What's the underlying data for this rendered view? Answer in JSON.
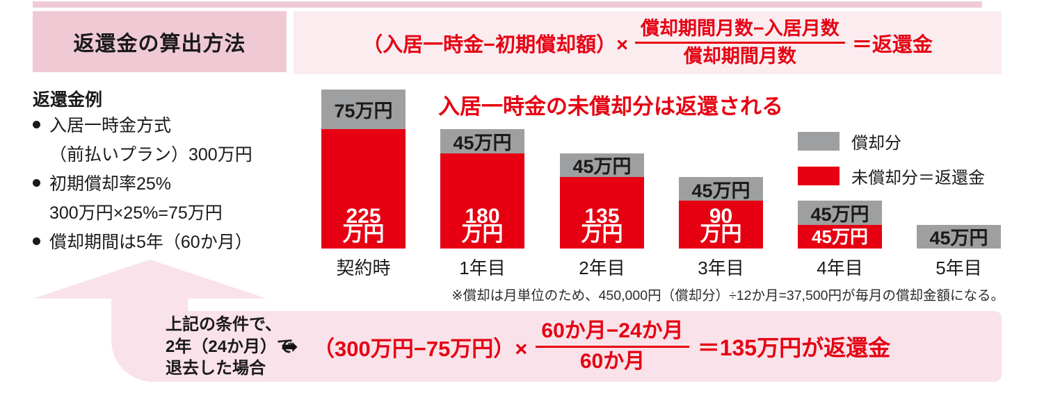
{
  "colors": {
    "red": "#E60012",
    "gray": "#9E9FA0",
    "pink_dark": "#EFCAD5",
    "pink_light": "#FBECF0",
    "pink_band": "#F9E2E9"
  },
  "header": {
    "title": "返還金の算出方法"
  },
  "formula_top": {
    "lhs": "（入居一時金−初期償却額）×",
    "numerator": "償却期間月数−入居月数",
    "denominator": "償却期間月数",
    "rhs": "＝返還金"
  },
  "example": {
    "heading": "返還金例",
    "lines": [
      {
        "bullet": true,
        "text": "入居一時金方式"
      },
      {
        "bullet": false,
        "text": "（前払いプラン）300万円"
      },
      {
        "bullet": true,
        "text": "初期償却率25%"
      },
      {
        "bullet": false,
        "text": "300万円×25%=75万円"
      },
      {
        "bullet": true,
        "text": "償却期間は5年（60か月）"
      }
    ]
  },
  "chart_data": {
    "type": "bar",
    "stacked": true,
    "title": "入居一時金の未償却分は返還される",
    "unit": "万円",
    "categories": [
      "契約時",
      "1年目",
      "2年目",
      "3年目",
      "4年目",
      "5年目"
    ],
    "series": [
      {
        "name": "償却分",
        "color_key": "gray",
        "values": [
          75,
          45,
          45,
          45,
          45,
          45
        ]
      },
      {
        "name": "未償却分＝返還金",
        "color_key": "red",
        "values": [
          225,
          180,
          135,
          90,
          45,
          0
        ]
      }
    ],
    "bar_labels": {
      "amortized": [
        "75万円",
        "45万円",
        "45万円",
        "45万円",
        "45万円",
        "45万円"
      ],
      "refund": [
        [
          "225",
          "万円"
        ],
        [
          "180",
          "万円"
        ],
        [
          "135",
          "万円"
        ],
        [
          "90",
          "万円"
        ],
        [
          "45万円"
        ],
        []
      ]
    },
    "legend": [
      {
        "label": "償却分",
        "color_key": "gray"
      },
      {
        "label": "未償却分＝返還金",
        "color_key": "red"
      }
    ],
    "ylim": [
      0,
      300
    ],
    "grid": false,
    "legend_position": "right",
    "note": "※償却は月単位のため、450,000円（償却分）÷12か月=37,500円が毎月の償却金額になる。"
  },
  "bottom": {
    "condition_lines": [
      "上記の条件で、",
      "2年（24か月）で",
      "退去した場合"
    ],
    "arrow_glyph": "➡",
    "formula": {
      "lhs": "（300万円−75万円）×",
      "numerator": "60か月−24か月",
      "denominator": "60か月",
      "rhs": "＝135万円が返還金"
    }
  }
}
